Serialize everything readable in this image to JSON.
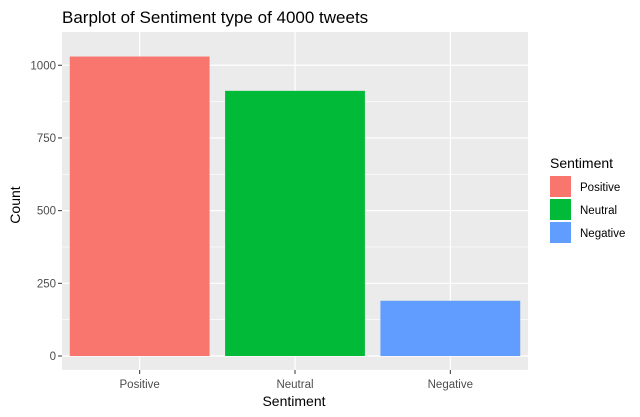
{
  "chart_data": {
    "type": "bar",
    "title": "Barplot of Sentiment type of 4000 tweets",
    "xlabel": "Sentiment",
    "ylabel": "Count",
    "categories": [
      "Positive",
      "Neutral",
      "Negative"
    ],
    "values": [
      1030,
      912,
      190
    ],
    "colors": [
      "#F8766D",
      "#00BA38",
      "#619CFF"
    ],
    "ylim": [
      0,
      1080
    ],
    "yticks": [
      0,
      250,
      500,
      750,
      1000
    ],
    "ytick_labels": [
      "0",
      "250",
      "500",
      "750",
      "1000"
    ],
    "grid": true,
    "panel_background": "#EBEBEB",
    "legend": {
      "title": "Sentiment",
      "placement": "right",
      "entries": [
        "Positive",
        "Neutral",
        "Negative"
      ]
    }
  }
}
